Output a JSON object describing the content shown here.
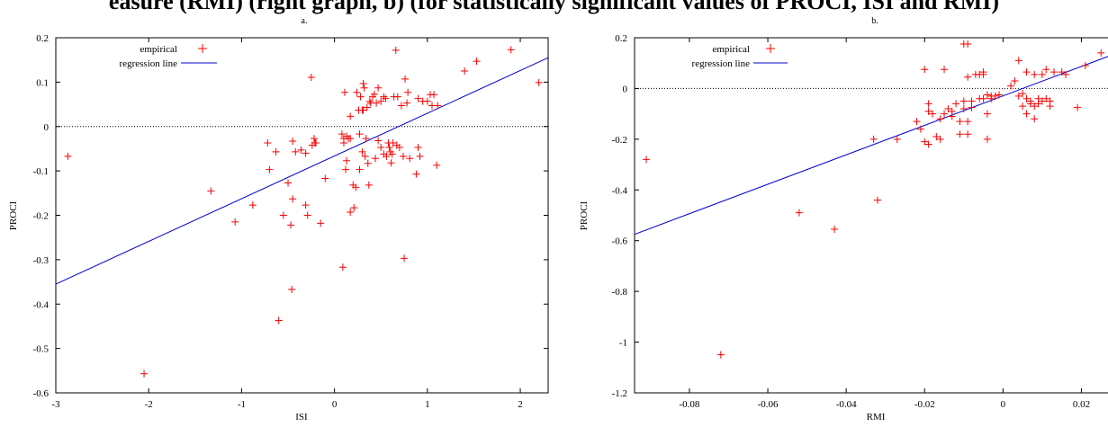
{
  "title": "easure (RMI) (right graph, b) (for statistically significant values of PROCI, ISI and RMI)",
  "colors": {
    "points": "#ff0000",
    "regression": "#0000cc",
    "zero_line": "#000000"
  },
  "chart_data": [
    {
      "type": "scatter",
      "panel_label": "a.",
      "xlabel": "ISI",
      "ylabel": "PROCI",
      "xlim": [
        -3,
        2.3
      ],
      "ylim": [
        -0.6,
        0.2
      ],
      "xticks": [
        -3,
        -2,
        -1,
        0,
        1,
        2
      ],
      "yticks": [
        -0.6,
        -0.5,
        -0.4,
        -0.3,
        -0.2,
        -0.1,
        0,
        0.1,
        0.2
      ],
      "xtick_labels": [
        "-3",
        "-2",
        "-1",
        "0",
        "1",
        "2"
      ],
      "ytick_labels": [
        "-0.6",
        "-0.5",
        "-0.4",
        "-0.3",
        "-0.2",
        "-0.1",
        "0",
        "0.1",
        "0.2"
      ],
      "legend": {
        "placement": "top-left",
        "entries": [
          "empirical",
          "regression line"
        ]
      },
      "zero_line": true,
      "regression": {
        "x": [
          -3,
          2.3
        ],
        "y": [
          -0.355,
          0.155
        ]
      },
      "series": [
        {
          "name": "empirical",
          "points": [
            [
              -2.87,
              -0.067
            ],
            [
              -2.05,
              -0.557
            ],
            [
              -1.33,
              -0.145
            ],
            [
              -1.07,
              -0.215
            ],
            [
              -0.88,
              -0.177
            ],
            [
              -0.72,
              -0.037
            ],
            [
              -0.7,
              -0.097
            ],
            [
              -0.63,
              -0.057
            ],
            [
              -0.6,
              -0.437
            ],
            [
              -0.55,
              -0.2
            ],
            [
              -0.5,
              -0.127
            ],
            [
              -0.47,
              -0.222
            ],
            [
              -0.46,
              -0.367
            ],
            [
              -0.45,
              -0.163
            ],
            [
              -0.45,
              -0.033
            ],
            [
              -0.42,
              -0.057
            ],
            [
              -0.36,
              -0.053
            ],
            [
              -0.31,
              -0.06
            ],
            [
              -0.31,
              -0.177
            ],
            [
              -0.29,
              -0.2
            ],
            [
              -0.25,
              0.111
            ],
            [
              -0.24,
              -0.042
            ],
            [
              -0.22,
              -0.027
            ],
            [
              -0.21,
              -0.037
            ],
            [
              -0.2,
              -0.037
            ],
            [
              -0.15,
              -0.218
            ],
            [
              -0.1,
              -0.117
            ],
            [
              0.08,
              -0.017
            ],
            [
              0.09,
              -0.317
            ],
            [
              0.1,
              -0.027
            ],
            [
              0.1,
              -0.037
            ],
            [
              0.11,
              0.077
            ],
            [
              0.12,
              -0.097
            ],
            [
              0.13,
              -0.077
            ],
            [
              0.13,
              -0.022
            ],
            [
              0.15,
              -0.027
            ],
            [
              0.17,
              0.023
            ],
            [
              0.17,
              -0.027
            ],
            [
              0.17,
              -0.193
            ],
            [
              0.2,
              -0.132
            ],
            [
              0.21,
              -0.183
            ],
            [
              0.23,
              -0.137
            ],
            [
              0.24,
              0.077
            ],
            [
              0.26,
              0.037
            ],
            [
              0.27,
              -0.017
            ],
            [
              0.27,
              -0.097
            ],
            [
              0.28,
              0.067
            ],
            [
              0.3,
              0.037
            ],
            [
              0.3,
              -0.057
            ],
            [
              0.31,
              0.097
            ],
            [
              0.31,
              0.037
            ],
            [
              0.32,
              0.087
            ],
            [
              0.33,
              -0.067
            ],
            [
              0.34,
              -0.027
            ],
            [
              0.35,
              0.043
            ],
            [
              0.36,
              -0.083
            ],
            [
              0.37,
              -0.132
            ],
            [
              0.38,
              0.057
            ],
            [
              0.39,
              0.053
            ],
            [
              0.41,
              0.067
            ],
            [
              0.43,
              0.073
            ],
            [
              0.44,
              -0.072
            ],
            [
              0.45,
              0.053
            ],
            [
              0.47,
              -0.032
            ],
            [
              0.47,
              0.087
            ],
            [
              0.5,
              0.057
            ],
            [
              0.5,
              -0.047
            ],
            [
              0.53,
              0.067
            ],
            [
              0.53,
              -0.062
            ],
            [
              0.55,
              0.063
            ],
            [
              0.56,
              -0.067
            ],
            [
              0.58,
              -0.037
            ],
            [
              0.59,
              -0.047
            ],
            [
              0.6,
              -0.057
            ],
            [
              0.61,
              -0.082
            ],
            [
              0.62,
              -0.062
            ],
            [
              0.63,
              -0.037
            ],
            [
              0.64,
              0.067
            ],
            [
              0.66,
              0.172
            ],
            [
              0.67,
              -0.042
            ],
            [
              0.68,
              0.067
            ],
            [
              0.7,
              -0.047
            ],
            [
              0.72,
              0.047
            ],
            [
              0.74,
              -0.067
            ],
            [
              0.75,
              -0.297
            ],
            [
              0.76,
              0.107
            ],
            [
              0.78,
              0.053
            ],
            [
              0.79,
              0.077
            ],
            [
              0.81,
              -0.072
            ],
            [
              0.88,
              -0.107
            ],
            [
              0.9,
              0.063
            ],
            [
              0.9,
              -0.047
            ],
            [
              0.92,
              -0.067
            ],
            [
              0.95,
              0.057
            ],
            [
              1.0,
              0.057
            ],
            [
              1.03,
              0.072
            ],
            [
              1.05,
              0.047
            ],
            [
              1.07,
              0.072
            ],
            [
              1.1,
              -0.087
            ],
            [
              1.11,
              0.047
            ],
            [
              1.4,
              0.125
            ],
            [
              1.53,
              0.147
            ],
            [
              1.9,
              0.173
            ],
            [
              2.2,
              0.099
            ]
          ]
        }
      ]
    },
    {
      "type": "scatter",
      "panel_label": "b.",
      "xlabel": "RMI",
      "ylabel": "PROCI",
      "xlim": [
        -0.094,
        0.03
      ],
      "ylim": [
        -1.2,
        0.2
      ],
      "xticks": [
        -0.08,
        -0.06,
        -0.04,
        -0.02,
        0,
        0.02
      ],
      "yticks": [
        -1.2,
        -1,
        -0.8,
        -0.6,
        -0.4,
        -0.2,
        0,
        0.2
      ],
      "xtick_labels": [
        "-0.08",
        "-0.06",
        "-0.04",
        "-0.02",
        "0",
        "0.02"
      ],
      "ytick_labels": [
        "-1.2",
        "-1",
        "-0.8",
        "-0.6",
        "-0.4",
        "-0.2",
        "0",
        "0.2"
      ],
      "legend": {
        "placement": "top-left",
        "entries": [
          "empirical",
          "regression line"
        ]
      },
      "zero_line": true,
      "regression": {
        "x": [
          -0.094,
          0.03
        ],
        "y": [
          -0.575,
          0.145
        ]
      },
      "series": [
        {
          "name": "empirical",
          "points": [
            [
              -0.091,
              -0.28
            ],
            [
              -0.072,
              -1.05
            ],
            [
              -0.052,
              -0.49
            ],
            [
              -0.043,
              -0.555
            ],
            [
              -0.033,
              -0.2
            ],
            [
              -0.032,
              -0.44
            ],
            [
              -0.027,
              -0.2
            ],
            [
              -0.022,
              -0.13
            ],
            [
              -0.021,
              -0.16
            ],
            [
              -0.02,
              -0.21
            ],
            [
              -0.02,
              0.075
            ],
            [
              -0.019,
              -0.09
            ],
            [
              -0.019,
              -0.06
            ],
            [
              -0.019,
              -0.22
            ],
            [
              -0.018,
              -0.1
            ],
            [
              -0.017,
              -0.19
            ],
            [
              -0.016,
              -0.2
            ],
            [
              -0.016,
              -0.12
            ],
            [
              -0.015,
              -0.1
            ],
            [
              -0.015,
              0.075
            ],
            [
              -0.014,
              -0.08
            ],
            [
              -0.013,
              -0.09
            ],
            [
              -0.013,
              -0.11
            ],
            [
              -0.012,
              -0.06
            ],
            [
              -0.011,
              -0.18
            ],
            [
              -0.011,
              -0.13
            ],
            [
              -0.01,
              0.175
            ],
            [
              -0.01,
              -0.05
            ],
            [
              -0.01,
              -0.08
            ],
            [
              -0.009,
              0.175
            ],
            [
              -0.009,
              -0.18
            ],
            [
              -0.009,
              0.045
            ],
            [
              -0.009,
              -0.13
            ],
            [
              -0.008,
              -0.05
            ],
            [
              -0.008,
              -0.075
            ],
            [
              -0.007,
              0.055
            ],
            [
              -0.006,
              0.055
            ],
            [
              -0.006,
              -0.04
            ],
            [
              -0.005,
              0.065
            ],
            [
              -0.005,
              0.055
            ],
            [
              -0.005,
              -0.04
            ],
            [
              -0.004,
              -0.2
            ],
            [
              -0.004,
              -0.025
            ],
            [
              -0.004,
              -0.1
            ],
            [
              -0.003,
              -0.03
            ],
            [
              -0.003,
              -0.04
            ],
            [
              -0.002,
              -0.03
            ],
            [
              -0.001,
              -0.025
            ],
            [
              0.002,
              0.01
            ],
            [
              0.003,
              0.03
            ],
            [
              0.004,
              0.11
            ],
            [
              0.004,
              -0.03
            ],
            [
              0.005,
              -0.02
            ],
            [
              0.005,
              -0.07
            ],
            [
              0.006,
              0.065
            ],
            [
              0.006,
              -0.1
            ],
            [
              0.006,
              -0.04
            ],
            [
              0.007,
              -0.05
            ],
            [
              0.007,
              -0.06
            ],
            [
              0.008,
              0.055
            ],
            [
              0.008,
              -0.07
            ],
            [
              0.008,
              -0.12
            ],
            [
              0.009,
              -0.04
            ],
            [
              0.009,
              -0.06
            ],
            [
              0.01,
              0.055
            ],
            [
              0.01,
              -0.05
            ],
            [
              0.011,
              -0.04
            ],
            [
              0.011,
              0.075
            ],
            [
              0.012,
              -0.05
            ],
            [
              0.012,
              -0.07
            ],
            [
              0.013,
              0.065
            ],
            [
              0.015,
              0.065
            ],
            [
              0.016,
              0.055
            ],
            [
              0.019,
              -0.075
            ],
            [
              0.021,
              0.09
            ],
            [
              0.025,
              0.14
            ],
            [
              0.029,
              -0.28
            ]
          ]
        }
      ]
    }
  ]
}
